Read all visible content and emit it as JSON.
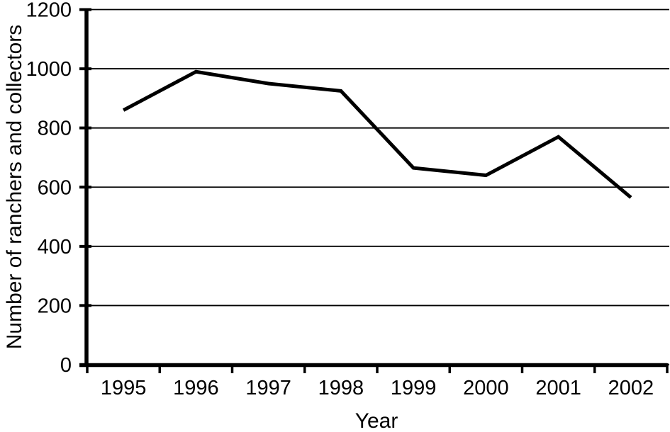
{
  "chart_data": {
    "type": "line",
    "title": "",
    "categories": [
      "1995",
      "1996",
      "1997",
      "1998",
      "1999",
      "2000",
      "2001",
      "2002"
    ],
    "values": [
      860,
      990,
      950,
      925,
      665,
      640,
      770,
      565
    ],
    "xlabel": "Year",
    "ylabel": "Number of ranchers and collectors",
    "ylim": [
      0,
      1200
    ],
    "yticks": [
      0,
      200,
      400,
      600,
      800,
      1000,
      1200
    ],
    "grid": true,
    "legend": false,
    "line_color": "#000000",
    "axis_color": "#000000",
    "grid_color": "#000000",
    "background": "#ffffff"
  }
}
